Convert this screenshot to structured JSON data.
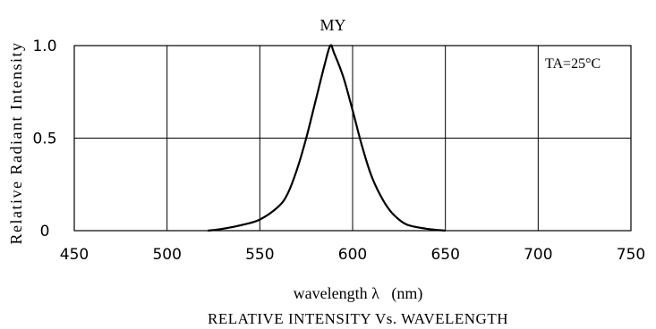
{
  "chart_data": {
    "type": "line",
    "title": "MY",
    "caption": "RELATIVE INTENSITY Vs. WAVELENGTH",
    "xlabel": "wavelength λ   (nm)",
    "ylabel": "Relative Radiant Intensity",
    "annotation": "TA=25°C",
    "xlim": [
      450,
      750
    ],
    "ylim": [
      0,
      1.0
    ],
    "xticks": [
      "450",
      "500",
      "550",
      "600",
      "650",
      "700",
      "750"
    ],
    "yticks": [
      "0",
      "0.5",
      "1.0"
    ],
    "grid": true,
    "series": [
      {
        "x": [
          522,
          530,
          540,
          550,
          560,
          565,
          570,
          575,
          580,
          585,
          588,
          590,
          595,
          600,
          605,
          610,
          615,
          620,
          625,
          630,
          640,
          650
        ],
        "y": [
          0.0,
          0.01,
          0.03,
          0.06,
          0.13,
          0.2,
          0.33,
          0.5,
          0.7,
          0.9,
          1.0,
          0.96,
          0.83,
          0.65,
          0.46,
          0.3,
          0.19,
          0.11,
          0.06,
          0.03,
          0.01,
          0.0
        ]
      }
    ]
  }
}
